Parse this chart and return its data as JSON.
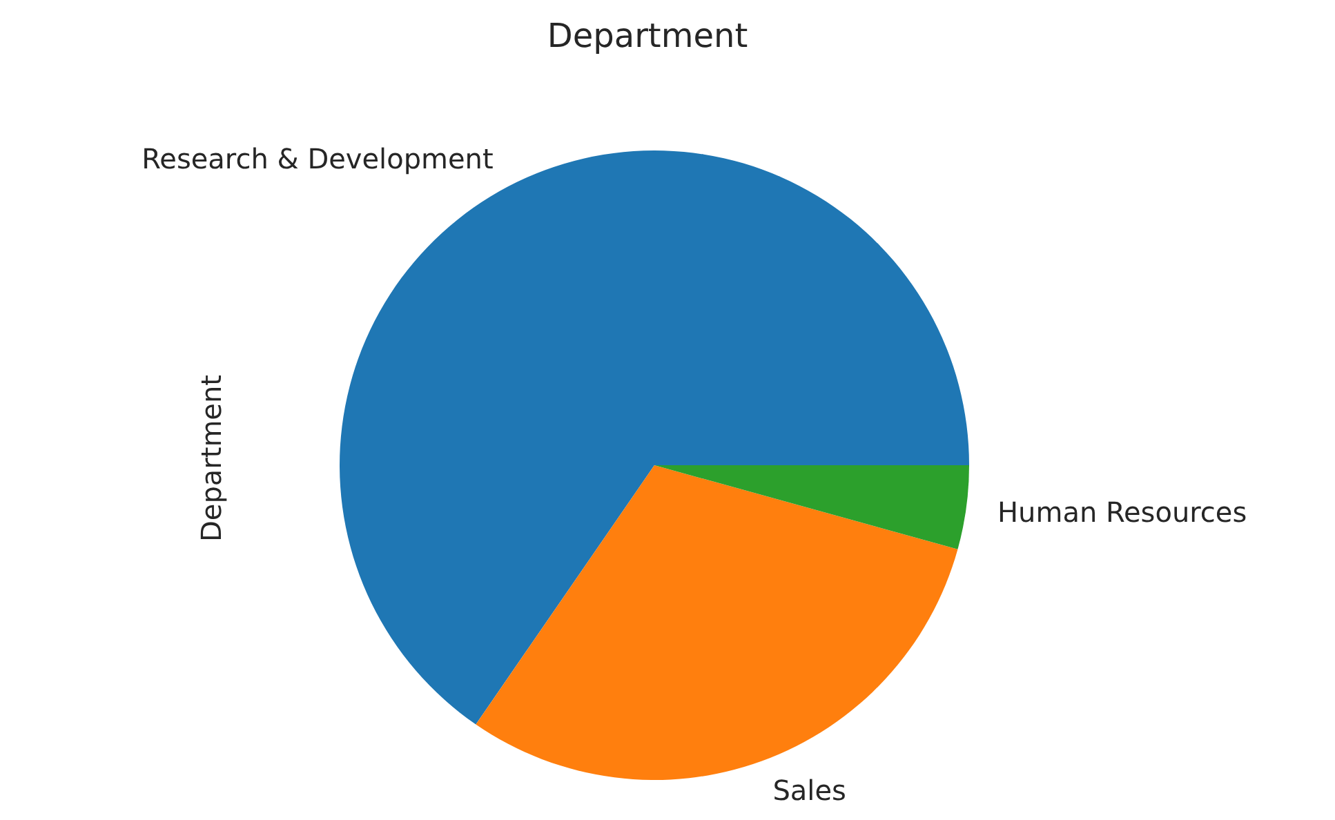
{
  "chart_data": {
    "type": "pie",
    "title": "Department",
    "ylabel": "Department",
    "categories": [
      "Research & Development",
      "Sales",
      "Human Resources"
    ],
    "values": [
      65.4,
      30.3,
      4.3
    ],
    "colors": [
      "#1f77b4",
      "#ff7f0e",
      "#2ca02c"
    ]
  }
}
